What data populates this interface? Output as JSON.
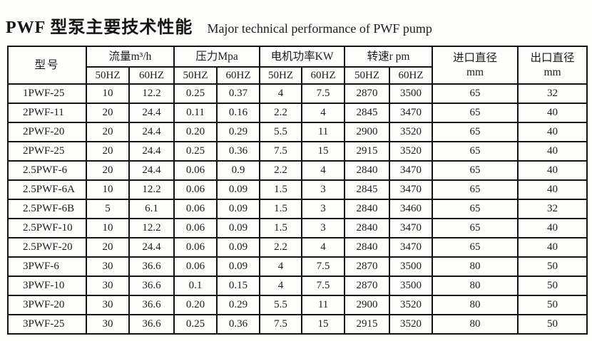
{
  "title": {
    "cn": "PWF 型泵主要技术性能",
    "en": "Major technical performance of PWF pump"
  },
  "table": {
    "header": {
      "model": "型号",
      "groups": [
        {
          "label": "流量m³/h",
          "sub": [
            "50HZ",
            "60HZ"
          ]
        },
        {
          "label": "压力Mpa",
          "sub": [
            "50HZ",
            "60HZ"
          ]
        },
        {
          "label": "电机功率KW",
          "sub": [
            "50HZ",
            "60HZ"
          ]
        },
        {
          "label": "转速r pm",
          "sub": [
            "50HZ",
            "60HZ"
          ]
        }
      ],
      "inlet": {
        "line1": "进口直径",
        "line2": "mm"
      },
      "outlet": {
        "line1": "出口直径",
        "line2": "mm"
      }
    },
    "rows": [
      [
        "1PWF-25",
        "10",
        "12.2",
        "0.25",
        "0.37",
        "4",
        "7.5",
        "2870",
        "3500",
        "65",
        "32"
      ],
      [
        "2PWF-11",
        "20",
        "24.4",
        "0.11",
        "0.16",
        "2.2",
        "4",
        "2845",
        "3470",
        "65",
        "40"
      ],
      [
        "2PWF-20",
        "20",
        "24.4",
        "0.20",
        "0.29",
        "5.5",
        "11",
        "2900",
        "3520",
        "65",
        "40"
      ],
      [
        "2PWF-25",
        "20",
        "24.4",
        "0.25",
        "0.36",
        "7.5",
        "15",
        "2915",
        "3520",
        "65",
        "40"
      ],
      [
        "2.5PWF-6",
        "20",
        "24.4",
        "0.06",
        "0.9",
        "2.2",
        "4",
        "2840",
        "3470",
        "65",
        "40"
      ],
      [
        "2.5PWF-6A",
        "10",
        "12.2",
        "0.06",
        "0.09",
        "1.5",
        "3",
        "2845",
        "3470",
        "65",
        "40"
      ],
      [
        "2.5PWF-6B",
        "5",
        "6.1",
        "0.06",
        "0.09",
        "1.5",
        "3",
        "2840",
        "3460",
        "65",
        "32"
      ],
      [
        "2.5PWF-10",
        "10",
        "12.2",
        "0.06",
        "0.09",
        "1.5",
        "3",
        "2840",
        "3470",
        "65",
        "40"
      ],
      [
        "2.5PWF-20",
        "20",
        "24.4",
        "0.06",
        "0.09",
        "2.2",
        "4",
        "2840",
        "3470",
        "65",
        "40"
      ],
      [
        "3PWF-6",
        "30",
        "36.6",
        "0.06",
        "0.09",
        "4",
        "7.5",
        "2870",
        "3500",
        "80",
        "50"
      ],
      [
        "3PWF-10",
        "30",
        "36.6",
        "0.1",
        "0.15",
        "4",
        "7.5",
        "2870",
        "3500",
        "80",
        "50"
      ],
      [
        "3PWF-20",
        "30",
        "36.6",
        "0.20",
        "0.29",
        "5.5",
        "11",
        "2900",
        "3520",
        "80",
        "50"
      ],
      [
        "3PWF-25",
        "30",
        "36.6",
        "0.25",
        "0.36",
        "7.5",
        "15",
        "2915",
        "3520",
        "80",
        "50"
      ]
    ]
  }
}
